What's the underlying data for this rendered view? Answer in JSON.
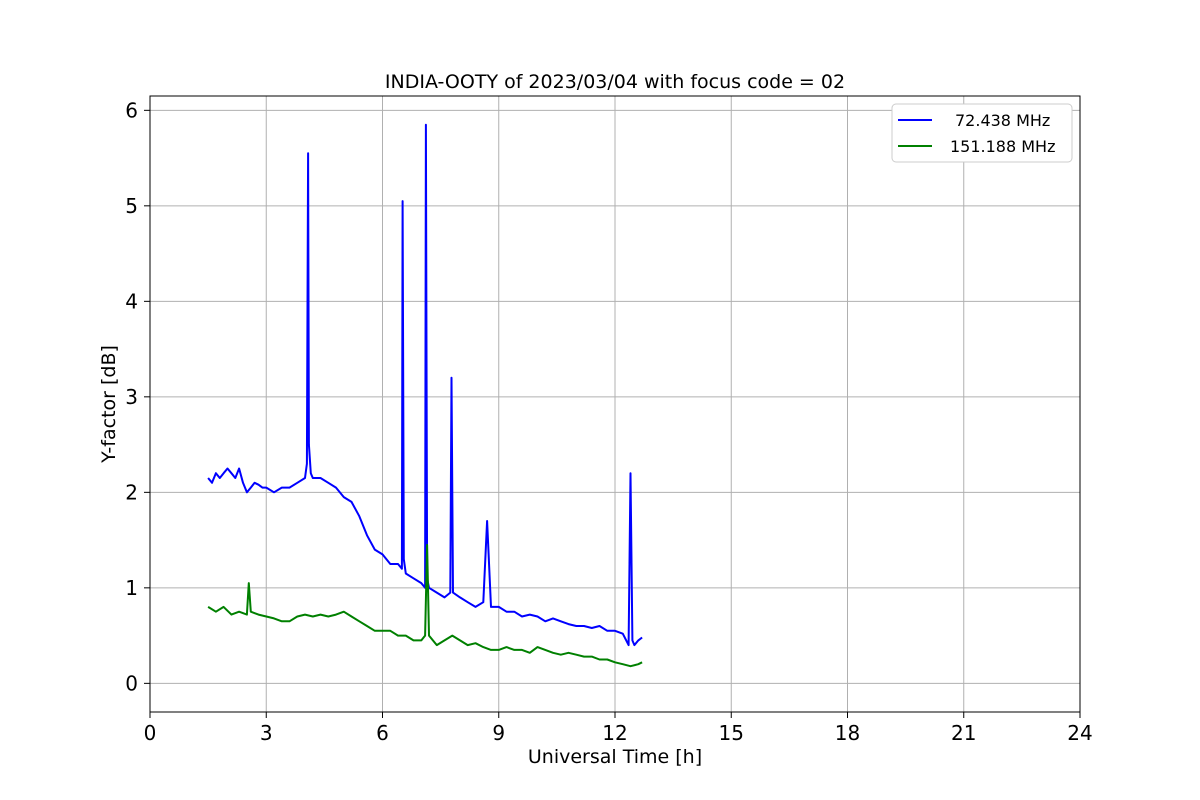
{
  "chart_data": {
    "type": "line",
    "title": "INDIA-OOTY of 2023/03/04 with focus code = 02",
    "xlabel": "Universal Time [h]",
    "ylabel": "Y-factor [dB]",
    "xlim": [
      0,
      24
    ],
    "ylim": [
      -0.3,
      6.15
    ],
    "xticks": [
      0,
      3,
      6,
      9,
      12,
      15,
      18,
      21,
      24
    ],
    "yticks": [
      0,
      1,
      2,
      3,
      4,
      5,
      6
    ],
    "grid": true,
    "legend_position": "top-right",
    "series": [
      {
        "name": "72.438 MHz",
        "color": "#0000ff",
        "x": [
          1.5,
          1.6,
          1.7,
          1.8,
          1.9,
          2.0,
          2.1,
          2.2,
          2.3,
          2.4,
          2.5,
          2.6,
          2.7,
          2.8,
          2.9,
          3.0,
          3.2,
          3.4,
          3.6,
          3.8,
          4.0,
          4.05,
          4.08,
          4.1,
          4.15,
          4.2,
          4.4,
          4.6,
          4.8,
          5.0,
          5.2,
          5.4,
          5.6,
          5.8,
          6.0,
          6.2,
          6.4,
          6.5,
          6.52,
          6.55,
          6.6,
          6.8,
          7.0,
          7.1,
          7.12,
          7.15,
          7.2,
          7.4,
          7.6,
          7.75,
          7.78,
          7.82,
          8.0,
          8.2,
          8.4,
          8.6,
          8.7,
          8.8,
          9.0,
          9.2,
          9.4,
          9.6,
          9.8,
          10.0,
          10.2,
          10.4,
          10.6,
          10.8,
          11.0,
          11.2,
          11.4,
          11.6,
          11.8,
          12.0,
          12.2,
          12.35,
          12.4,
          12.45,
          12.5,
          12.6,
          12.7
        ],
        "y": [
          2.15,
          2.1,
          2.2,
          2.15,
          2.2,
          2.25,
          2.2,
          2.15,
          2.25,
          2.1,
          2.0,
          2.05,
          2.1,
          2.08,
          2.05,
          2.05,
          2.0,
          2.05,
          2.05,
          2.1,
          2.15,
          2.3,
          5.55,
          2.5,
          2.2,
          2.15,
          2.15,
          2.1,
          2.05,
          1.95,
          1.9,
          1.75,
          1.55,
          1.4,
          1.35,
          1.25,
          1.25,
          1.2,
          5.05,
          1.3,
          1.15,
          1.1,
          1.05,
          1.0,
          5.85,
          1.1,
          1.0,
          0.95,
          0.9,
          0.95,
          3.2,
          0.95,
          0.9,
          0.85,
          0.8,
          0.85,
          1.7,
          0.8,
          0.8,
          0.75,
          0.75,
          0.7,
          0.72,
          0.7,
          0.65,
          0.68,
          0.65,
          0.62,
          0.6,
          0.6,
          0.58,
          0.6,
          0.55,
          0.55,
          0.52,
          0.4,
          2.2,
          0.45,
          0.4,
          0.45,
          0.48
        ]
      },
      {
        "name": "151.188 MHz",
        "color": "#008000",
        "x": [
          1.5,
          1.7,
          1.9,
          2.1,
          2.3,
          2.5,
          2.55,
          2.6,
          2.8,
          3.0,
          3.2,
          3.4,
          3.6,
          3.8,
          4.0,
          4.2,
          4.4,
          4.6,
          4.8,
          5.0,
          5.2,
          5.4,
          5.6,
          5.8,
          6.0,
          6.2,
          6.4,
          6.6,
          6.8,
          7.0,
          7.1,
          7.15,
          7.2,
          7.4,
          7.6,
          7.8,
          8.0,
          8.2,
          8.4,
          8.6,
          8.8,
          9.0,
          9.2,
          9.4,
          9.6,
          9.8,
          10.0,
          10.2,
          10.4,
          10.6,
          10.8,
          11.0,
          11.2,
          11.4,
          11.6,
          11.8,
          12.0,
          12.2,
          12.4,
          12.6,
          12.7
        ],
        "y": [
          0.8,
          0.75,
          0.8,
          0.72,
          0.75,
          0.72,
          1.05,
          0.75,
          0.72,
          0.7,
          0.68,
          0.65,
          0.65,
          0.7,
          0.72,
          0.7,
          0.72,
          0.7,
          0.72,
          0.75,
          0.7,
          0.65,
          0.6,
          0.55,
          0.55,
          0.55,
          0.5,
          0.5,
          0.45,
          0.45,
          0.5,
          1.45,
          0.5,
          0.4,
          0.45,
          0.5,
          0.45,
          0.4,
          0.42,
          0.38,
          0.35,
          0.35,
          0.38,
          0.35,
          0.35,
          0.32,
          0.38,
          0.35,
          0.32,
          0.3,
          0.32,
          0.3,
          0.28,
          0.28,
          0.25,
          0.25,
          0.22,
          0.2,
          0.18,
          0.2,
          0.22
        ]
      }
    ]
  }
}
